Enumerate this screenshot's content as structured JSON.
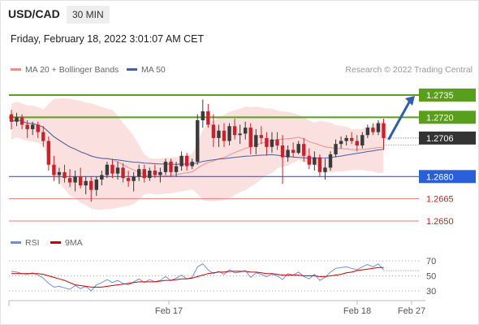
{
  "header": {
    "symbol": "USD/CAD",
    "timeframe": "30 MIN",
    "datetime": "Friday, February 18, 2022 3:01:07 AM CET",
    "credit": "Research © 2022 Trading Central"
  },
  "legend": {
    "ma20": "MA 20 + Bollinger Bands",
    "ma50": "MA 50",
    "rsi": "RSI",
    "nine_ma": "9MA"
  },
  "colors": {
    "up_candle": "#3a3a3a",
    "down_candle": "#c8232c",
    "ma20": "#f08f8f",
    "ma50": "#4a5f9e",
    "bollinger_fill": "#fbe0e0",
    "resistance": "#5a9e1e",
    "pivot": "#2b5fd9",
    "support": "#e08080",
    "rsi": "#6e8fe0",
    "rsi_ma": "#cc0000"
  },
  "chart_data": [
    {
      "type": "candlestick",
      "title": "USD/CAD",
      "timeframe": "30 MIN",
      "x_ticks": [
        "Feb 17",
        "Feb 18",
        "Feb 27"
      ],
      "ylim": [
        1.2635,
        1.2755
      ],
      "price_labels": [
        {
          "label": "1.2735",
          "value": 1.2735,
          "style": "resistance"
        },
        {
          "label": "1.2720",
          "value": 1.272,
          "style": "resistance"
        },
        {
          "label": "1.2706",
          "value": 1.2706,
          "style": "last"
        },
        {
          "label": "1.2680",
          "value": 1.268,
          "style": "pivot"
        },
        {
          "label": "1.2665",
          "value": 1.2665,
          "style": "support"
        },
        {
          "label": "1.2650",
          "value": 1.265,
          "style": "support"
        }
      ],
      "forecast_arrow": {
        "from": 1.2706,
        "to": 1.2735
      },
      "candles": [
        [
          1.2722,
          1.2725,
          1.2712,
          1.2717
        ],
        [
          1.2717,
          1.2723,
          1.2714,
          1.272
        ],
        [
          1.272,
          1.2722,
          1.2712,
          1.2715
        ],
        [
          1.2715,
          1.2718,
          1.2706,
          1.2712
        ],
        [
          1.2712,
          1.2717,
          1.2708,
          1.2715
        ],
        [
          1.2715,
          1.2717,
          1.2706,
          1.271
        ],
        [
          1.271,
          1.2714,
          1.27,
          1.2704
        ],
        [
          1.2704,
          1.2707,
          1.2684,
          1.2688
        ],
        [
          1.2688,
          1.2694,
          1.2677,
          1.2681
        ],
        [
          1.2681,
          1.2686,
          1.2675,
          1.2683
        ],
        [
          1.2683,
          1.2688,
          1.2676,
          1.2679
        ],
        [
          1.2679,
          1.2685,
          1.2673,
          1.2676
        ],
        [
          1.2676,
          1.2684,
          1.267,
          1.268
        ],
        [
          1.268,
          1.2686,
          1.2672,
          1.2674
        ],
        [
          1.2674,
          1.268,
          1.2668,
          1.2677
        ],
        [
          1.2677,
          1.268,
          1.2663,
          1.2671
        ],
        [
          1.2671,
          1.268,
          1.2667,
          1.2678
        ],
        [
          1.2678,
          1.2684,
          1.2674,
          1.2681
        ],
        [
          1.2681,
          1.269,
          1.2679,
          1.2688
        ],
        [
          1.2688,
          1.2692,
          1.2679,
          1.2682
        ],
        [
          1.2682,
          1.269,
          1.2678,
          1.2686
        ],
        [
          1.2686,
          1.2689,
          1.2676,
          1.2679
        ],
        [
          1.2679,
          1.2684,
          1.2673,
          1.2677
        ],
        [
          1.2677,
          1.2683,
          1.267,
          1.268
        ],
        [
          1.268,
          1.2688,
          1.2677,
          1.2685
        ],
        [
          1.2685,
          1.2688,
          1.2676,
          1.2679
        ],
        [
          1.2679,
          1.2686,
          1.2677,
          1.2684
        ],
        [
          1.2684,
          1.2688,
          1.2679,
          1.2681
        ],
        [
          1.2681,
          1.2686,
          1.2676,
          1.2683
        ],
        [
          1.2683,
          1.2692,
          1.2681,
          1.269
        ],
        [
          1.269,
          1.2692,
          1.268,
          1.2683
        ],
        [
          1.2683,
          1.269,
          1.268,
          1.2687
        ],
        [
          1.2687,
          1.2697,
          1.2684,
          1.2694
        ],
        [
          1.2694,
          1.2696,
          1.2684,
          1.2687
        ],
        [
          1.2687,
          1.2692,
          1.2685,
          1.269
        ],
        [
          1.269,
          1.2722,
          1.2688,
          1.2718
        ],
        [
          1.2718,
          1.2732,
          1.2713,
          1.2724
        ],
        [
          1.2724,
          1.2729,
          1.2713,
          1.2715
        ],
        [
          1.2715,
          1.2722,
          1.27,
          1.2706
        ],
        [
          1.2706,
          1.2715,
          1.27,
          1.2711
        ],
        [
          1.2711,
          1.2716,
          1.27,
          1.2704
        ],
        [
          1.2704,
          1.2716,
          1.2701,
          1.2714
        ],
        [
          1.2714,
          1.2719,
          1.2705,
          1.2708
        ],
        [
          1.2708,
          1.2715,
          1.2702,
          1.2709
        ],
        [
          1.2709,
          1.2717,
          1.2705,
          1.2713
        ],
        [
          1.2713,
          1.2716,
          1.2695,
          1.27
        ],
        [
          1.27,
          1.2712,
          1.2695,
          1.2708
        ],
        [
          1.2708,
          1.2714,
          1.2702,
          1.2706
        ],
        [
          1.2706,
          1.271,
          1.2694,
          1.27
        ],
        [
          1.27,
          1.271,
          1.2696,
          1.2705
        ],
        [
          1.2705,
          1.271,
          1.2698,
          1.2701
        ],
        [
          1.2701,
          1.2708,
          1.2675,
          1.2693
        ],
        [
          1.2693,
          1.2701,
          1.269,
          1.2698
        ],
        [
          1.2698,
          1.2703,
          1.2693,
          1.2696
        ],
        [
          1.2696,
          1.2704,
          1.2695,
          1.2702
        ],
        [
          1.2702,
          1.2706,
          1.269,
          1.2694
        ],
        [
          1.2694,
          1.2699,
          1.2685,
          1.2688
        ],
        [
          1.2688,
          1.2697,
          1.2684,
          1.2693
        ],
        [
          1.2693,
          1.2695,
          1.268,
          1.2683
        ],
        [
          1.2683,
          1.2692,
          1.2678,
          1.2686
        ],
        [
          1.2686,
          1.2697,
          1.2684,
          1.2695
        ],
        [
          1.2695,
          1.2705,
          1.2693,
          1.2702
        ],
        [
          1.2702,
          1.2707,
          1.2699,
          1.2704
        ],
        [
          1.2704,
          1.2708,
          1.2701,
          1.2706
        ],
        [
          1.2706,
          1.271,
          1.2702,
          1.2704
        ],
        [
          1.2704,
          1.2708,
          1.2697,
          1.2701
        ],
        [
          1.2701,
          1.271,
          1.2699,
          1.2708
        ],
        [
          1.2708,
          1.2715,
          1.2706,
          1.2713
        ],
        [
          1.2713,
          1.2716,
          1.2708,
          1.271
        ],
        [
          1.271,
          1.2718,
          1.2708,
          1.2716
        ],
        [
          1.2716,
          1.2719,
          1.2698,
          1.2706
        ]
      ]
    },
    {
      "type": "line",
      "title": "RSI",
      "ylim": [
        20,
        80
      ],
      "y_ticks": [
        30,
        50,
        70
      ],
      "series": [
        {
          "name": "RSI",
          "values": [
            56,
            55,
            53,
            52,
            54,
            51,
            47,
            40,
            35,
            36,
            34,
            32,
            37,
            33,
            36,
            30,
            38,
            41,
            45,
            41,
            44,
            40,
            38,
            42,
            46,
            41,
            45,
            42,
            44,
            49,
            44,
            47,
            51,
            46,
            48,
            62,
            66,
            58,
            53,
            56,
            52,
            58,
            54,
            55,
            57,
            48,
            54,
            52,
            49,
            52,
            50,
            45,
            53,
            51,
            55,
            49,
            46,
            52,
            44,
            48,
            55,
            60,
            61,
            62,
            60,
            58,
            62,
            65,
            62,
            66,
            58
          ]
        },
        {
          "name": "9MA",
          "values": [
            53,
            53,
            53,
            53,
            53,
            53,
            52,
            50,
            48,
            46,
            44,
            41,
            38,
            37,
            36,
            35,
            35,
            35,
            36,
            37,
            38,
            39,
            40,
            41,
            42,
            42,
            42,
            42,
            43,
            44,
            44,
            45,
            46,
            46,
            47,
            49,
            51,
            53,
            54,
            55,
            55,
            56,
            56,
            56,
            56,
            55,
            55,
            54,
            53,
            53,
            52,
            51,
            51,
            51,
            51,
            50,
            50,
            50,
            49,
            49,
            50,
            51,
            52,
            54,
            55,
            57,
            58,
            59,
            60,
            61,
            61
          ]
        }
      ]
    }
  ]
}
